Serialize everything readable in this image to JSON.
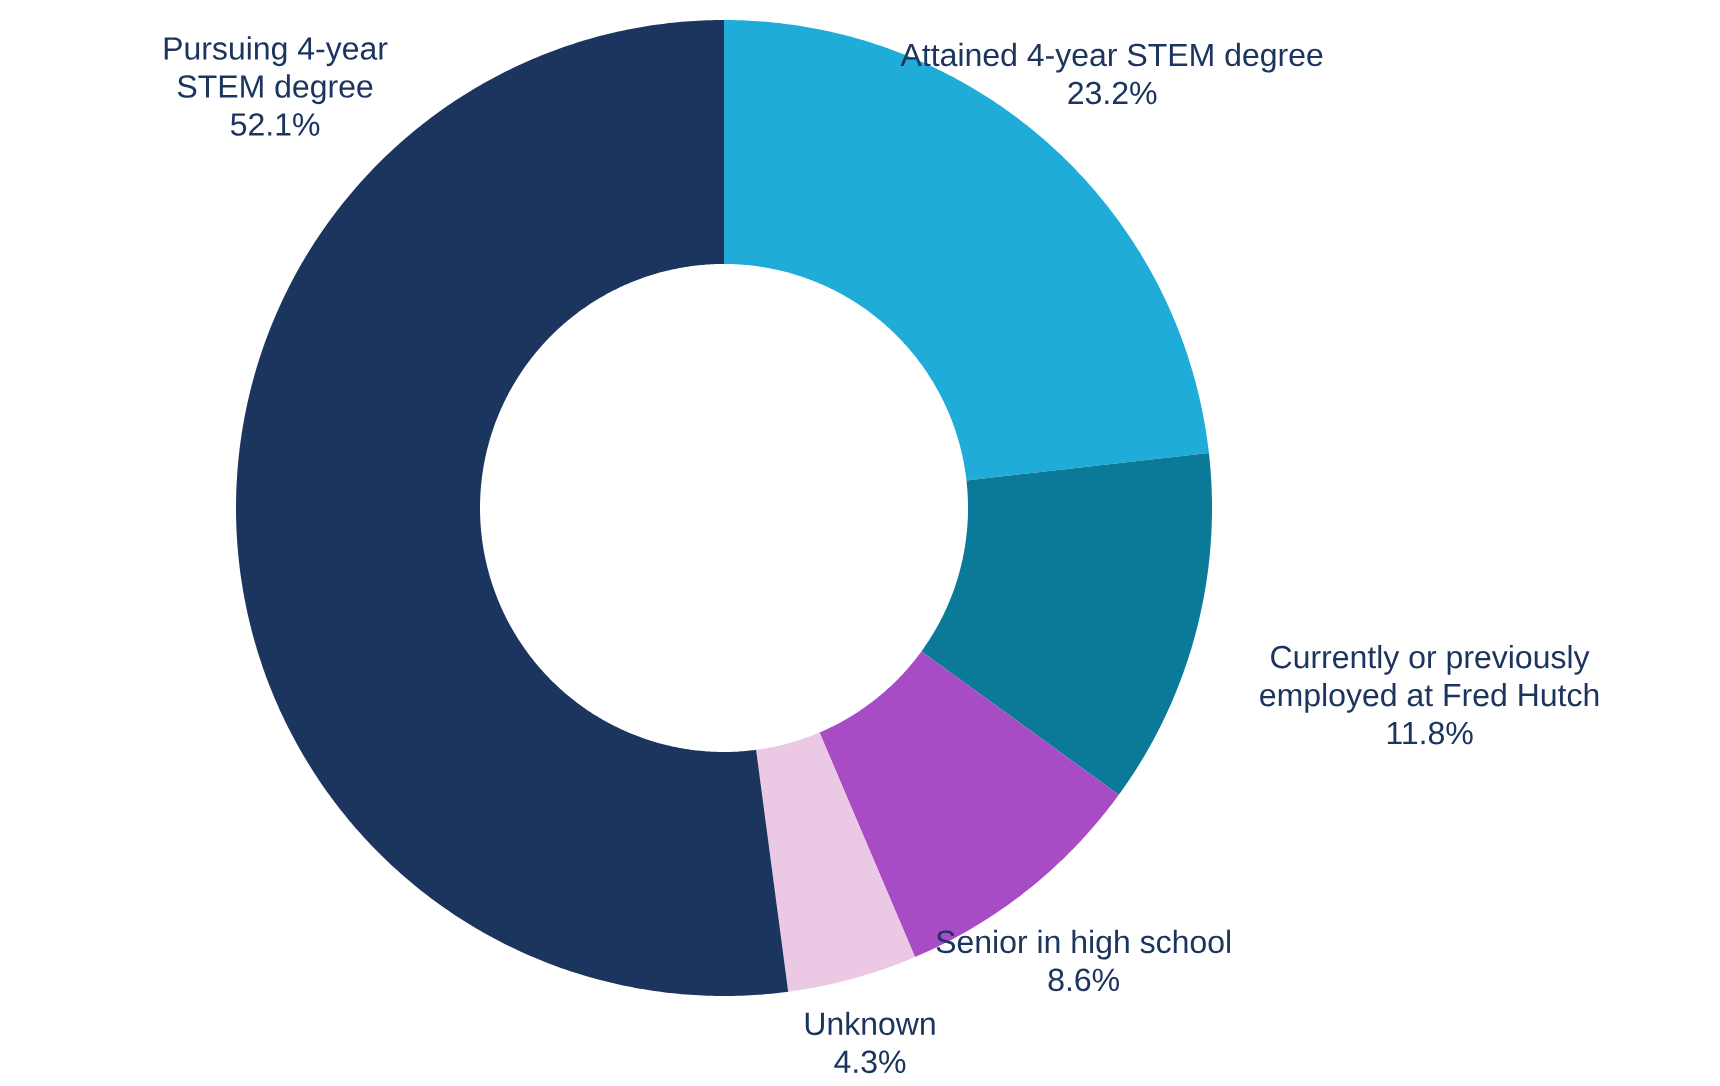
{
  "chart_data": {
    "type": "donut",
    "categories": [
      "Attained 4-year STEM degree",
      "Currently or previously employed at Fred Hutch",
      "Senior in high school",
      "Unknown",
      "Pursuing 4-year STEM degree"
    ],
    "values": [
      23.2,
      11.8,
      8.6,
      4.3,
      52.1
    ],
    "value_labels": [
      "23.2%",
      "11.8%",
      "8.6%",
      "4.3%",
      "52.1%"
    ],
    "colors": [
      "#20acd8",
      "#0b7a99",
      "#a84cc6",
      "#ebc8e4",
      "#1c355e"
    ]
  }
}
